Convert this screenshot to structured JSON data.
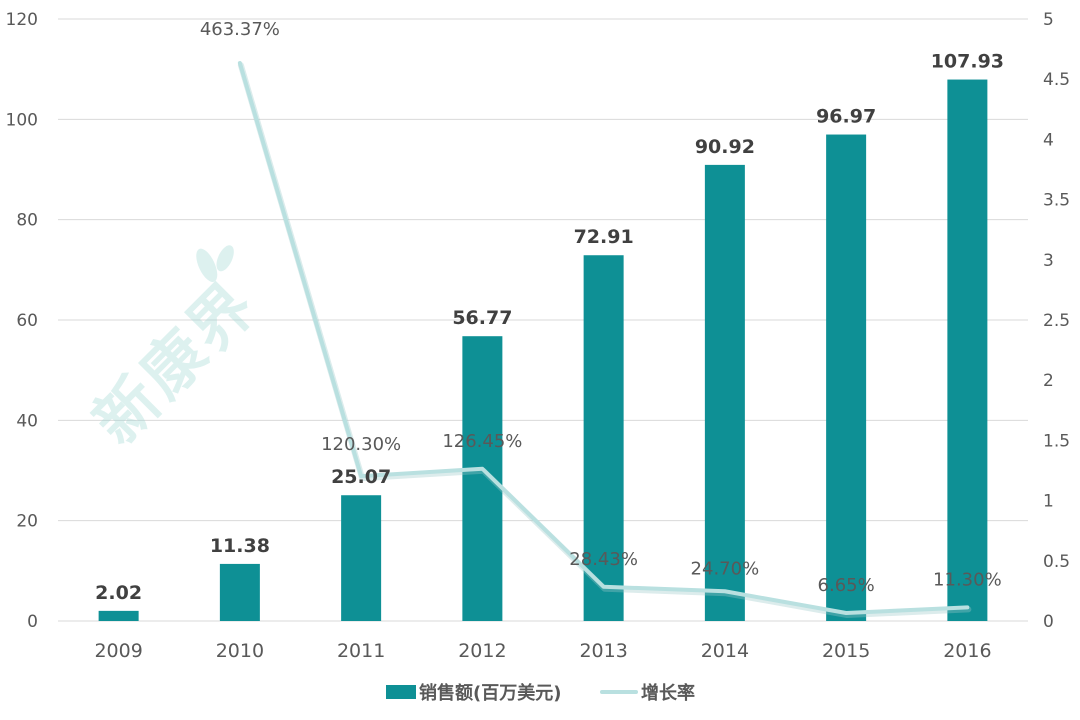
{
  "chart_data": {
    "type": "bar",
    "title": "",
    "categories": [
      "2009",
      "2010",
      "2011",
      "2012",
      "2013",
      "2014",
      "2015",
      "2016"
    ],
    "series": [
      {
        "name": "销售额(百万美元)",
        "type": "bar",
        "axis": "left",
        "color": "#0e9095",
        "values": [
          2.02,
          11.38,
          25.07,
          56.77,
          72.91,
          90.92,
          96.97,
          107.93
        ],
        "labels": [
          "2.02",
          "11.38",
          "25.07",
          "56.77",
          "72.91",
          "90.92",
          "96.97",
          "107.93"
        ]
      },
      {
        "name": "增长率",
        "type": "line",
        "axis": "right",
        "color": "#b9e0e0",
        "values": [
          null,
          4.6337,
          1.203,
          1.2645,
          0.2843,
          0.247,
          0.0665,
          0.113
        ],
        "labels": [
          "",
          "463.37%",
          "120.30%",
          "126.45%",
          "28.43%",
          "24.70%",
          "6.65%",
          "11.30%"
        ]
      }
    ],
    "xlabel": "",
    "ylabel": "",
    "ylim": [
      0,
      120
    ],
    "y_ticks": [
      "0",
      "20",
      "40",
      "60",
      "80",
      "100",
      "120"
    ],
    "y2lim": [
      0,
      5
    ],
    "y2_ticks": [
      "0",
      "0.5",
      "1",
      "1.5",
      "2",
      "2.5",
      "3",
      "3.5",
      "4",
      "4.5",
      "5"
    ],
    "grid": true,
    "legend_position": "bottom"
  },
  "watermark": "新康界"
}
